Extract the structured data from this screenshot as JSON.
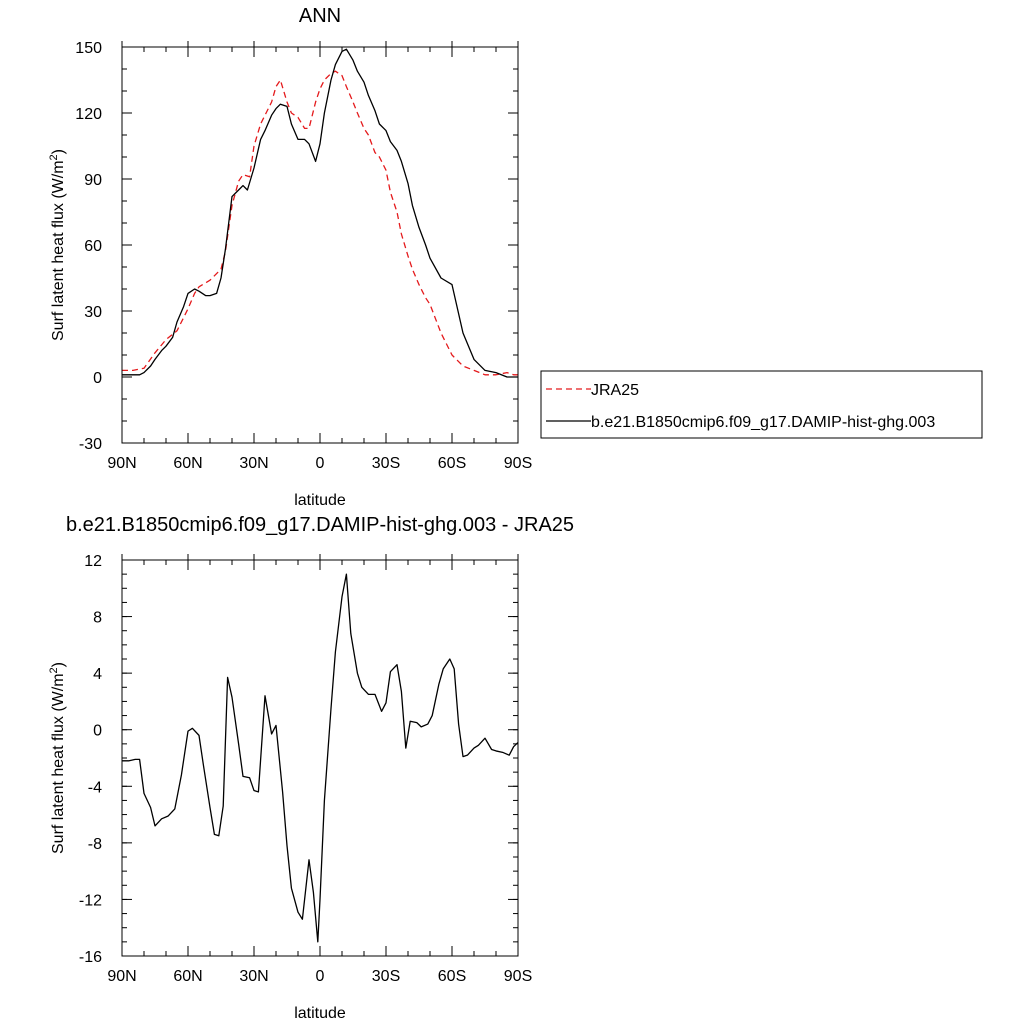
{
  "chart_data": [
    {
      "type": "line",
      "title": "ANN",
      "xlabel": "latitude",
      "ylabel_main": "Surf latent heat flux (W/m",
      "ylabel_sup": "2",
      "ylabel_close": ")",
      "xlim": [
        -90,
        90
      ],
      "ylim": [
        -30,
        150
      ],
      "xticks": [
        {
          "value": -90,
          "label": "90N"
        },
        {
          "value": -60,
          "label": "60N"
        },
        {
          "value": -30,
          "label": "30N"
        },
        {
          "value": 0,
          "label": "0"
        },
        {
          "value": 30,
          "label": "30S"
        },
        {
          "value": 60,
          "label": "60S"
        },
        {
          "value": 90,
          "label": "90S"
        }
      ],
      "yticks": [
        {
          "value": -30,
          "label": "-30"
        },
        {
          "value": 0,
          "label": "0"
        },
        {
          "value": 30,
          "label": "30"
        },
        {
          "value": 60,
          "label": "60"
        },
        {
          "value": 90,
          "label": "90"
        },
        {
          "value": 120,
          "label": "120"
        },
        {
          "value": 150,
          "label": "150"
        }
      ],
      "legend_placement": "right",
      "series": [
        {
          "name": "JRA25",
          "color": "#e41a1c",
          "dash": "dashed",
          "x": [
            -90,
            -85,
            -80,
            -75,
            -70,
            -65,
            -60,
            -57,
            -55,
            -50,
            -45,
            -43,
            -40,
            -37,
            -35,
            -32,
            -30,
            -27,
            -25,
            -22,
            -20,
            -18,
            -15,
            -13,
            -10,
            -7,
            -5,
            -2,
            0,
            2,
            5,
            7,
            10,
            12,
            15,
            17,
            20,
            22,
            25,
            27,
            30,
            32,
            35,
            37,
            40,
            42,
            45,
            48,
            50,
            55,
            60,
            65,
            70,
            75,
            80,
            85,
            88,
            90
          ],
          "y": [
            3,
            3,
            4,
            11,
            17,
            21,
            31,
            38,
            41,
            44,
            49,
            57,
            78,
            89,
            92,
            91,
            105,
            115,
            119,
            125,
            132,
            135,
            125,
            120,
            118,
            113,
            113,
            125,
            131,
            135,
            138,
            139,
            137,
            132,
            125,
            120,
            113,
            110,
            102,
            100,
            94,
            84,
            75,
            65,
            55,
            49,
            42,
            36,
            33,
            20,
            10,
            5,
            3,
            1,
            1,
            2,
            1,
            1
          ]
        },
        {
          "name": "b.e21.B1850cmip6.f09_g17.DAMIP-hist-ghg.003",
          "color": "#000000",
          "dash": "solid",
          "x": [
            -90,
            -85,
            -82,
            -80,
            -77,
            -75,
            -72,
            -70,
            -67,
            -65,
            -62,
            -60,
            -57,
            -55,
            -52,
            -50,
            -47,
            -45,
            -43,
            -40,
            -37,
            -35,
            -33,
            -30,
            -27,
            -25,
            -22,
            -20,
            -18,
            -15,
            -13,
            -10,
            -7,
            -5,
            -2,
            0,
            2,
            5,
            7,
            10,
            12,
            15,
            17,
            20,
            22,
            25,
            27,
            30,
            32,
            35,
            37,
            40,
            42,
            45,
            48,
            50,
            55,
            60,
            65,
            70,
            75,
            80,
            85,
            88,
            90
          ],
          "y": [
            1,
            1,
            1,
            2,
            5,
            8,
            12,
            14,
            18,
            25,
            32,
            38,
            40,
            39,
            37,
            37,
            38,
            45,
            58,
            82,
            85,
            87,
            85,
            95,
            108,
            112,
            119,
            122,
            124,
            123,
            115,
            108,
            108,
            106,
            98,
            106,
            120,
            135,
            142,
            148,
            149,
            144,
            139,
            134,
            128,
            121,
            115,
            112,
            107,
            103,
            98,
            88,
            78,
            68,
            60,
            54,
            45,
            42,
            20,
            8,
            3,
            2,
            0,
            0,
            0
          ]
        }
      ]
    },
    {
      "type": "line",
      "title": "b.e21.B1850cmip6.f09_g17.DAMIP-hist-ghg.003 - JRA25",
      "xlabel": "latitude",
      "ylabel_main": "Surf latent heat flux (W/m",
      "ylabel_sup": "2",
      "ylabel_close": ")",
      "xlim": [
        -90,
        90
      ],
      "ylim": [
        -16,
        12
      ],
      "xticks": [
        {
          "value": -90,
          "label": "90N"
        },
        {
          "value": -60,
          "label": "60N"
        },
        {
          "value": -30,
          "label": "30N"
        },
        {
          "value": 0,
          "label": "0"
        },
        {
          "value": 30,
          "label": "30S"
        },
        {
          "value": 60,
          "label": "60S"
        },
        {
          "value": 90,
          "label": "90S"
        }
      ],
      "yticks": [
        {
          "value": -16,
          "label": "-16"
        },
        {
          "value": -12,
          "label": "-12"
        },
        {
          "value": -8,
          "label": "-8"
        },
        {
          "value": -4,
          "label": "-4"
        },
        {
          "value": 0,
          "label": "0"
        },
        {
          "value": 4,
          "label": "4"
        },
        {
          "value": 8,
          "label": "8"
        },
        {
          "value": 12,
          "label": "12"
        }
      ],
      "series": [
        {
          "color": "#000000",
          "dash": "solid",
          "x": [
            -90,
            -87,
            -84,
            -82,
            -80,
            -77,
            -75,
            -72,
            -69,
            -66,
            -63,
            -60,
            -58,
            -55,
            -53,
            -50,
            -48,
            -46,
            -44,
            -42,
            -40,
            -37,
            -35,
            -32,
            -30,
            -28,
            -25,
            -22,
            -20,
            -17,
            -15,
            -13,
            -10,
            -8,
            -5,
            -3,
            -1,
            0,
            2,
            5,
            7,
            10,
            12,
            14,
            17,
            19,
            22,
            25,
            28,
            30,
            32,
            35,
            37,
            39,
            41,
            44,
            46,
            49,
            51,
            54,
            56,
            59,
            61,
            63,
            65,
            67,
            70,
            72,
            75,
            78,
            80,
            83,
            86,
            88,
            90
          ],
          "y": [
            -2.2,
            -2.2,
            -2.1,
            -2.1,
            -4.5,
            -5.5,
            -6.8,
            -6.3,
            -6.1,
            -5.6,
            -3.2,
            -0.1,
            0.1,
            -0.4,
            -2.5,
            -5.5,
            -7.4,
            -7.5,
            -5.4,
            3.7,
            2.3,
            -1.0,
            -3.3,
            -3.4,
            -4.3,
            -4.4,
            2.4,
            -0.3,
            0.3,
            -4.4,
            -8.2,
            -11.2,
            -12.9,
            -13.4,
            -9.2,
            -11.5,
            -15.0,
            -12.0,
            -5.0,
            1.5,
            5.5,
            9.4,
            11.0,
            6.8,
            4.0,
            3.0,
            2.5,
            2.5,
            1.3,
            1.9,
            4.1,
            4.6,
            2.7,
            -1.3,
            0.6,
            0.5,
            0.2,
            0.4,
            1.0,
            3.2,
            4.3,
            5.0,
            4.3,
            0.4,
            -1.9,
            -1.8,
            -1.3,
            -1.1,
            -0.6,
            -1.4,
            -1.5,
            -1.6,
            -1.8,
            -1.2,
            -0.9
          ]
        }
      ]
    }
  ]
}
